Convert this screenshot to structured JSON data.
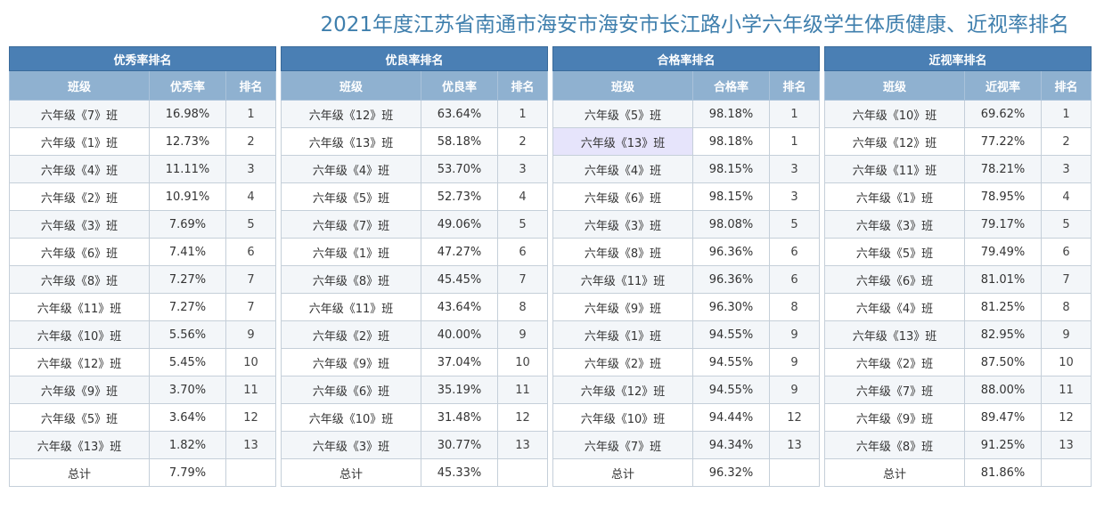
{
  "title": "2021年度江苏省南通市海安市海安市长江路小学六年级学生体质健康、近视率排名",
  "colors": {
    "title": "#3f7fad",
    "table_header": "#4a7fb4",
    "column_header": "#8fb1d0",
    "highlight": "#e6e4fb"
  },
  "tables": [
    {
      "title": "优秀率排名",
      "col_class": "班级",
      "col_rate": "优秀率",
      "col_rank": "排名",
      "rows": [
        {
          "class": "六年级《7》班",
          "rate": "16.98%",
          "rank": "1"
        },
        {
          "class": "六年级《1》班",
          "rate": "12.73%",
          "rank": "2"
        },
        {
          "class": "六年级《4》班",
          "rate": "11.11%",
          "rank": "3"
        },
        {
          "class": "六年级《2》班",
          "rate": "10.91%",
          "rank": "4"
        },
        {
          "class": "六年级《3》班",
          "rate": "7.69%",
          "rank": "5"
        },
        {
          "class": "六年级《6》班",
          "rate": "7.41%",
          "rank": "6"
        },
        {
          "class": "六年级《8》班",
          "rate": "7.27%",
          "rank": "7"
        },
        {
          "class": "六年级《11》班",
          "rate": "7.27%",
          "rank": "7"
        },
        {
          "class": "六年级《10》班",
          "rate": "5.56%",
          "rank": "9"
        },
        {
          "class": "六年级《12》班",
          "rate": "5.45%",
          "rank": "10"
        },
        {
          "class": "六年级《9》班",
          "rate": "3.70%",
          "rank": "11"
        },
        {
          "class": "六年级《5》班",
          "rate": "3.64%",
          "rank": "12"
        },
        {
          "class": "六年级《13》班",
          "rate": "1.82%",
          "rank": "13"
        }
      ],
      "total_label": "总计",
      "total_rate": "7.79%"
    },
    {
      "title": "优良率排名",
      "col_class": "班级",
      "col_rate": "优良率",
      "col_rank": "排名",
      "rows": [
        {
          "class": "六年级《12》班",
          "rate": "63.64%",
          "rank": "1"
        },
        {
          "class": "六年级《13》班",
          "rate": "58.18%",
          "rank": "2"
        },
        {
          "class": "六年级《4》班",
          "rate": "53.70%",
          "rank": "3"
        },
        {
          "class": "六年级《5》班",
          "rate": "52.73%",
          "rank": "4"
        },
        {
          "class": "六年级《7》班",
          "rate": "49.06%",
          "rank": "5"
        },
        {
          "class": "六年级《1》班",
          "rate": "47.27%",
          "rank": "6"
        },
        {
          "class": "六年级《8》班",
          "rate": "45.45%",
          "rank": "7"
        },
        {
          "class": "六年级《11》班",
          "rate": "43.64%",
          "rank": "8"
        },
        {
          "class": "六年级《2》班",
          "rate": "40.00%",
          "rank": "9"
        },
        {
          "class": "六年级《9》班",
          "rate": "37.04%",
          "rank": "10"
        },
        {
          "class": "六年级《6》班",
          "rate": "35.19%",
          "rank": "11"
        },
        {
          "class": "六年级《10》班",
          "rate": "31.48%",
          "rank": "12"
        },
        {
          "class": "六年级《3》班",
          "rate": "30.77%",
          "rank": "13"
        }
      ],
      "total_label": "总计",
      "total_rate": "45.33%"
    },
    {
      "title": "合格率排名",
      "col_class": "班级",
      "col_rate": "合格率",
      "col_rank": "排名",
      "rows": [
        {
          "class": "六年级《5》班",
          "rate": "98.18%",
          "rank": "1"
        },
        {
          "class": "六年级《13》班",
          "rate": "98.18%",
          "rank": "1",
          "highlight": true
        },
        {
          "class": "六年级《4》班",
          "rate": "98.15%",
          "rank": "3"
        },
        {
          "class": "六年级《6》班",
          "rate": "98.15%",
          "rank": "3"
        },
        {
          "class": "六年级《3》班",
          "rate": "98.08%",
          "rank": "5"
        },
        {
          "class": "六年级《8》班",
          "rate": "96.36%",
          "rank": "6"
        },
        {
          "class": "六年级《11》班",
          "rate": "96.36%",
          "rank": "6"
        },
        {
          "class": "六年级《9》班",
          "rate": "96.30%",
          "rank": "8"
        },
        {
          "class": "六年级《1》班",
          "rate": "94.55%",
          "rank": "9"
        },
        {
          "class": "六年级《2》班",
          "rate": "94.55%",
          "rank": "9"
        },
        {
          "class": "六年级《12》班",
          "rate": "94.55%",
          "rank": "9"
        },
        {
          "class": "六年级《10》班",
          "rate": "94.44%",
          "rank": "12"
        },
        {
          "class": "六年级《7》班",
          "rate": "94.34%",
          "rank": "13"
        }
      ],
      "total_label": "总计",
      "total_rate": "96.32%"
    },
    {
      "title": "近视率排名",
      "col_class": "班级",
      "col_rate": "近视率",
      "col_rank": "排名",
      "rows": [
        {
          "class": "六年级《10》班",
          "rate": "69.62%",
          "rank": "1"
        },
        {
          "class": "六年级《12》班",
          "rate": "77.22%",
          "rank": "2"
        },
        {
          "class": "六年级《11》班",
          "rate": "78.21%",
          "rank": "3"
        },
        {
          "class": "六年级《1》班",
          "rate": "78.95%",
          "rank": "4"
        },
        {
          "class": "六年级《3》班",
          "rate": "79.17%",
          "rank": "5"
        },
        {
          "class": "六年级《5》班",
          "rate": "79.49%",
          "rank": "6"
        },
        {
          "class": "六年级《6》班",
          "rate": "81.01%",
          "rank": "7"
        },
        {
          "class": "六年级《4》班",
          "rate": "81.25%",
          "rank": "8"
        },
        {
          "class": "六年级《13》班",
          "rate": "82.95%",
          "rank": "9"
        },
        {
          "class": "六年级《2》班",
          "rate": "87.50%",
          "rank": "10"
        },
        {
          "class": "六年级《7》班",
          "rate": "88.00%",
          "rank": "11"
        },
        {
          "class": "六年级《9》班",
          "rate": "89.47%",
          "rank": "12"
        },
        {
          "class": "六年级《8》班",
          "rate": "91.25%",
          "rank": "13"
        }
      ],
      "total_label": "总计",
      "total_rate": "81.86%"
    }
  ]
}
